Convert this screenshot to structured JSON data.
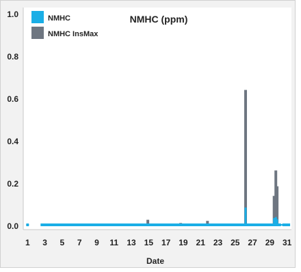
{
  "chart_data": {
    "type": "bar",
    "title": "NMHC (ppm)",
    "xlabel": "Date",
    "ylabel": "",
    "ylim": [
      0,
      1.0
    ],
    "xlim": [
      0.5,
      31.5
    ],
    "grid": false,
    "legend": "top-left",
    "y_ticks": [
      "0.0",
      "0.2",
      "0.4",
      "0.6",
      "0.8",
      "1.0"
    ],
    "x_ticks": [
      "1",
      "3",
      "5",
      "7",
      "9",
      "11",
      "13",
      "15",
      "17",
      "19",
      "21",
      "23",
      "25",
      "27",
      "29",
      "31"
    ],
    "series": [
      {
        "name": "NMHC InsMax",
        "color": "#6e7681",
        "points": [
          [
            1,
            0.004
          ],
          [
            2.7,
            0.004
          ],
          [
            3.3,
            0.004
          ],
          [
            5,
            0.004
          ],
          [
            7,
            0.004
          ],
          [
            9,
            0.004
          ],
          [
            11,
            0.004
          ],
          [
            13,
            0.004
          ],
          [
            14.9,
            0.027
          ],
          [
            16,
            0.004
          ],
          [
            17.5,
            0.004
          ],
          [
            18.7,
            0.012
          ],
          [
            20,
            0.004
          ],
          [
            21.8,
            0.022
          ],
          [
            23,
            0.004
          ],
          [
            25,
            0.004
          ],
          [
            26.2,
            0.64
          ],
          [
            27.5,
            0.004
          ],
          [
            29.5,
            0.14
          ],
          [
            29.7,
            0.26
          ],
          [
            29.85,
            0.185
          ],
          [
            30.4,
            0.004
          ],
          [
            31,
            0.004
          ]
        ]
      },
      {
        "name": "NMHC",
        "color": "#1aaee6",
        "points": [
          [
            1,
            0.003
          ],
          [
            2.7,
            0.003
          ],
          [
            3.3,
            0.003
          ],
          [
            5,
            0.003
          ],
          [
            7,
            0.003
          ],
          [
            9,
            0.003
          ],
          [
            11,
            0.003
          ],
          [
            13,
            0.003
          ],
          [
            14.9,
            0.006
          ],
          [
            16,
            0.003
          ],
          [
            17.5,
            0.003
          ],
          [
            18.7,
            0.004
          ],
          [
            20,
            0.003
          ],
          [
            21.8,
            0.005
          ],
          [
            23,
            0.003
          ],
          [
            25,
            0.003
          ],
          [
            26.2,
            0.085
          ],
          [
            27.5,
            0.003
          ],
          [
            29.5,
            0.035
          ],
          [
            29.7,
            0.04
          ],
          [
            29.85,
            0.03
          ],
          [
            30.4,
            0.003
          ],
          [
            31,
            0.003
          ]
        ]
      }
    ]
  }
}
